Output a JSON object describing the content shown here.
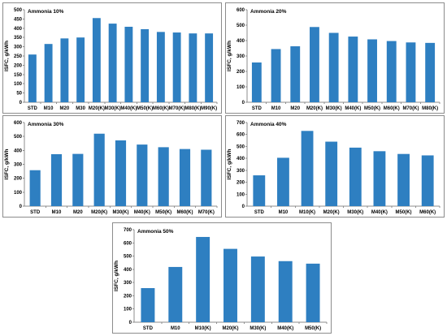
{
  "chart_data": [
    {
      "type": "bar",
      "title": "Ammonia 10%",
      "ylabel": "ISFC, g/kWh",
      "ylim": [
        0,
        500
      ],
      "yticks": [
        0,
        50,
        100,
        150,
        200,
        250,
        300,
        350,
        400,
        450,
        500
      ],
      "categories": [
        "STD",
        "M10",
        "M20",
        "M30",
        "M20(K)",
        "M30(K)",
        "M40(K)",
        "M50(K)",
        "M60(K)",
        "M70(K)",
        "M80(K)",
        "M90(K)"
      ],
      "values": [
        258,
        315,
        345,
        350,
        455,
        425,
        408,
        395,
        380,
        377,
        372,
        372
      ]
    },
    {
      "type": "bar",
      "title": "Ammonia 20%",
      "ylabel": "ISFC, g/kWh",
      "ylim": [
        0,
        600
      ],
      "yticks": [
        0,
        100,
        200,
        300,
        400,
        500,
        600
      ],
      "categories": [
        "STD",
        "M10",
        "M20",
        "M20(K)",
        "M30(K)",
        "M40(K)",
        "M50(K)",
        "M60(K)",
        "M70(K)",
        "M80(K)"
      ],
      "values": [
        258,
        345,
        363,
        488,
        450,
        426,
        408,
        397,
        388,
        385
      ]
    },
    {
      "type": "bar",
      "title": "Ammonia 30%",
      "ylabel": "ISFC, g/kWh",
      "ylim": [
        0,
        600
      ],
      "yticks": [
        0,
        100,
        200,
        300,
        400,
        500,
        600
      ],
      "categories": [
        "STD",
        "M10",
        "M20",
        "M20(K)",
        "M30(K)",
        "M40(K)",
        "M50(K)",
        "M60(K)",
        "M70(K)"
      ],
      "values": [
        258,
        373,
        375,
        520,
        472,
        442,
        423,
        410,
        405
      ]
    },
    {
      "type": "bar",
      "title": "Ammonia 40%",
      "ylabel": "ISFC, g/kWh",
      "ylim": [
        0,
        700
      ],
      "yticks": [
        0,
        100,
        200,
        300,
        400,
        500,
        600,
        700
      ],
      "categories": [
        "STD",
        "M10",
        "M10(K)",
        "M20(K)",
        "M30(K)",
        "M40(K)",
        "M50(K)",
        "M60(K)"
      ],
      "values": [
        258,
        405,
        630,
        540,
        490,
        460,
        437,
        425
      ]
    },
    {
      "type": "bar",
      "title": "Ammonia 50%",
      "ylabel": "ISFC, g/kWh",
      "ylim": [
        0,
        700
      ],
      "yticks": [
        0,
        100,
        200,
        300,
        400,
        500,
        600,
        700
      ],
      "categories": [
        "STD",
        "M10",
        "M10(K)",
        "M20(K)",
        "M30(K)",
        "M40(K)",
        "M50(K)"
      ],
      "values": [
        258,
        418,
        645,
        555,
        497,
        462,
        443
      ]
    }
  ]
}
